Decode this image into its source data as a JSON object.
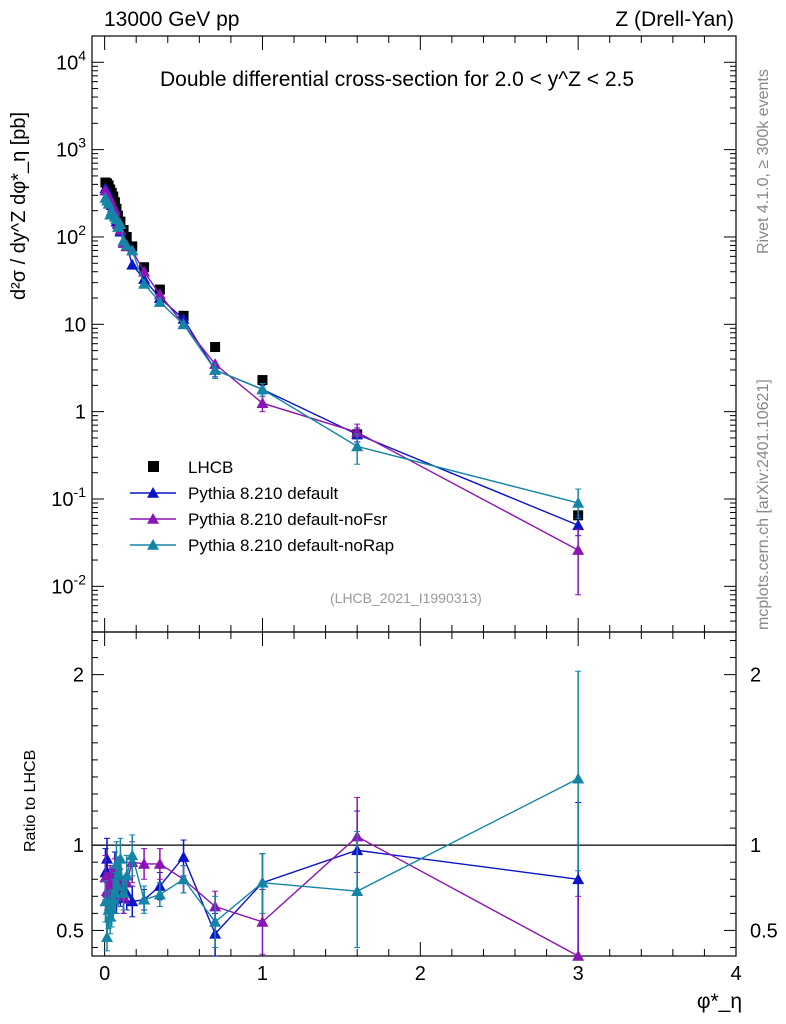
{
  "header": {
    "energy_label": "13000 GeV pp",
    "process_label": "Z (Drell-Yan)",
    "title": "Double differential cross-section for 2.0 < y^Z < 2.5",
    "watermark": "(LHCB_2021_I1990313)",
    "side_rivet": "Rivet 4.1.0, ≥ 300k events",
    "side_mcplots": "mcplots.cern.ch [arXiv:2401.10621]"
  },
  "colors": {
    "data": "#000000",
    "default": "#0a14c8",
    "noFsr": "#8c14b4",
    "noRap": "#1485a5"
  },
  "chart_data": [
    {
      "type": "scatter",
      "name": "main",
      "title": "Double differential cross-section for 2.0 < y^Z < 2.5",
      "ylabel": "d²σ / dy^Z dφ*_η [pb]",
      "xlabel": "φ*_η",
      "yscale": "log",
      "xlim": [
        -0.08,
        4.0
      ],
      "ylim": [
        0.003,
        20000
      ],
      "y_tick_labels": [
        "10^-2",
        "10^-1",
        "1",
        "10",
        "10^2",
        "10^3",
        "10^4"
      ],
      "legend_position": "bottom-left",
      "x": [
        0.005,
        0.015,
        0.025,
        0.035,
        0.045,
        0.055,
        0.065,
        0.075,
        0.085,
        0.1,
        0.12,
        0.14,
        0.175,
        0.25,
        0.35,
        0.5,
        0.7,
        1.0,
        1.6,
        3.0
      ],
      "series": [
        {
          "name": "LHCB",
          "key": "data",
          "marker": "square",
          "values": [
            420,
            410,
            390,
            350,
            320,
            290,
            250,
            210,
            175,
            150,
            120,
            100,
            78,
            45,
            25,
            12.5,
            5.5,
            2.3,
            0.55,
            0.065
          ],
          "err_lo": [
            null,
            null,
            null,
            null,
            null,
            null,
            null,
            null,
            null,
            null,
            null,
            null,
            null,
            null,
            null,
            null,
            null,
            null,
            null,
            null
          ],
          "err_hi": [
            null,
            null,
            null,
            null,
            null,
            null,
            null,
            null,
            null,
            null,
            null,
            null,
            null,
            null,
            null,
            null,
            null,
            null,
            null,
            null
          ]
        },
        {
          "name": "Pythia 8.210 default",
          "key": "default",
          "marker": "triangle",
          "values": [
            360,
            340,
            300,
            240,
            230,
            220,
            210,
            150,
            145,
            115,
            90,
            80,
            48,
            33,
            20,
            11.5,
            3.0,
            1.8,
            0.55,
            0.05
          ],
          "err_lo": [
            null,
            null,
            null,
            null,
            null,
            null,
            null,
            null,
            null,
            null,
            null,
            null,
            null,
            null,
            null,
            null,
            2.5,
            1.6,
            0.45,
            0.038
          ],
          "err_hi": [
            null,
            null,
            null,
            null,
            null,
            null,
            null,
            null,
            null,
            null,
            null,
            null,
            null,
            null,
            null,
            null,
            3.6,
            2.0,
            0.65,
            0.065
          ]
        },
        {
          "name": "Pythia 8.210 default-noFsr",
          "key": "noFsr",
          "marker": "triangle",
          "values": [
            340,
            300,
            280,
            270,
            240,
            220,
            200,
            170,
            140,
            120,
            85,
            78,
            70,
            40,
            22,
            10,
            3.5,
            1.25,
            0.58,
            0.026
          ],
          "err_lo": [
            null,
            null,
            null,
            null,
            null,
            null,
            null,
            null,
            null,
            null,
            null,
            null,
            null,
            null,
            null,
            null,
            null,
            1.0,
            0.45,
            0.008
          ],
          "err_hi": [
            null,
            null,
            null,
            null,
            null,
            null,
            null,
            null,
            null,
            null,
            null,
            null,
            null,
            null,
            null,
            null,
            null,
            1.5,
            0.72,
            0.045
          ]
        },
        {
          "name": "Pythia 8.210 default-noRap",
          "key": "noRap",
          "marker": "triangle",
          "values": [
            280,
            260,
            240,
            180,
            200,
            180,
            170,
            160,
            130,
            140,
            90,
            80,
            70,
            29,
            18,
            10,
            3.0,
            1.8,
            0.4,
            0.09
          ],
          "err_lo": [
            null,
            null,
            null,
            null,
            null,
            null,
            null,
            null,
            null,
            null,
            null,
            null,
            null,
            null,
            null,
            null,
            2.4,
            1.5,
            0.25,
            0.06
          ],
          "err_hi": [
            null,
            null,
            null,
            null,
            null,
            null,
            null,
            null,
            null,
            null,
            null,
            null,
            null,
            null,
            null,
            null,
            3.6,
            2.1,
            0.55,
            0.13
          ]
        }
      ]
    },
    {
      "type": "scatter",
      "name": "ratio",
      "ylabel": "Ratio to LHCB",
      "xlabel": "φ*_η",
      "yscale": "linear",
      "xlim": [
        -0.08,
        4.0
      ],
      "ylim": [
        0.35,
        2.25
      ],
      "x_ticks": [
        0,
        1,
        2,
        3,
        4
      ],
      "y_ticks": [
        0.5,
        1,
        2
      ],
      "reference_line": 1,
      "x": [
        0.005,
        0.015,
        0.025,
        0.035,
        0.045,
        0.055,
        0.065,
        0.075,
        0.085,
        0.1,
        0.12,
        0.14,
        0.175,
        0.25,
        0.35,
        0.5,
        0.7,
        1.0,
        1.6,
        3.0
      ],
      "series": [
        {
          "name": "Pythia 8.210 default",
          "key": "default",
          "values": [
            0.84,
            0.92,
            0.74,
            0.69,
            0.72,
            0.76,
            0.83,
            0.72,
            0.78,
            0.75,
            0.69,
            0.72,
            0.67,
            0.68,
            0.76,
            0.93,
            0.48,
            0.78,
            0.97,
            0.8
          ],
          "err_lo": [
            0.7,
            0.78,
            0.62,
            0.58,
            0.6,
            0.64,
            0.7,
            0.6,
            0.66,
            0.64,
            0.6,
            0.62,
            0.58,
            0.62,
            0.68,
            0.82,
            0.35,
            0.55,
            0.73,
            0.33
          ],
          "err_hi": [
            0.98,
            1.04,
            0.86,
            0.8,
            0.84,
            0.88,
            0.96,
            0.84,
            0.9,
            0.86,
            0.78,
            0.82,
            0.76,
            0.74,
            0.84,
            1.03,
            0.6,
            0.95,
            1.2,
            1.25
          ]
        },
        {
          "name": "Pythia 8.210 default-noFsr",
          "key": "noFsr",
          "values": [
            0.81,
            0.73,
            0.72,
            0.77,
            0.75,
            0.76,
            0.8,
            0.81,
            0.8,
            0.8,
            0.7,
            0.78,
            0.9,
            0.89,
            0.89,
            0.8,
            0.64,
            0.55,
            1.05,
            0.35
          ],
          "err_lo": [
            0.68,
            0.62,
            0.61,
            0.66,
            0.64,
            0.65,
            0.68,
            0.69,
            0.68,
            0.69,
            0.6,
            0.66,
            0.78,
            0.8,
            0.8,
            0.72,
            0.55,
            0.36,
            0.84,
            0.35
          ],
          "err_hi": [
            0.94,
            0.84,
            0.83,
            0.88,
            0.86,
            0.87,
            0.92,
            0.93,
            0.92,
            0.91,
            0.8,
            0.9,
            1.02,
            0.98,
            0.98,
            0.88,
            0.73,
            0.74,
            1.28,
            0.7
          ]
        },
        {
          "name": "Pythia 8.210 default-noRap",
          "key": "noRap",
          "values": [
            0.67,
            0.46,
            0.62,
            0.58,
            0.63,
            0.68,
            0.72,
            0.89,
            0.76,
            0.92,
            0.72,
            0.82,
            0.94,
            0.68,
            0.71,
            0.8,
            0.55,
            0.78,
            0.73,
            1.39
          ],
          "err_lo": [
            0.55,
            0.38,
            0.51,
            0.48,
            0.52,
            0.56,
            0.6,
            0.76,
            0.64,
            0.8,
            0.62,
            0.7,
            0.82,
            0.6,
            0.64,
            0.72,
            0.4,
            0.6,
            0.4,
            0.85
          ],
          "err_hi": [
            0.79,
            0.55,
            0.73,
            0.68,
            0.74,
            0.8,
            0.84,
            1.02,
            0.88,
            1.04,
            0.82,
            0.94,
            1.06,
            0.76,
            0.78,
            0.88,
            0.7,
            0.95,
            1.08,
            2.02
          ]
        }
      ]
    }
  ]
}
